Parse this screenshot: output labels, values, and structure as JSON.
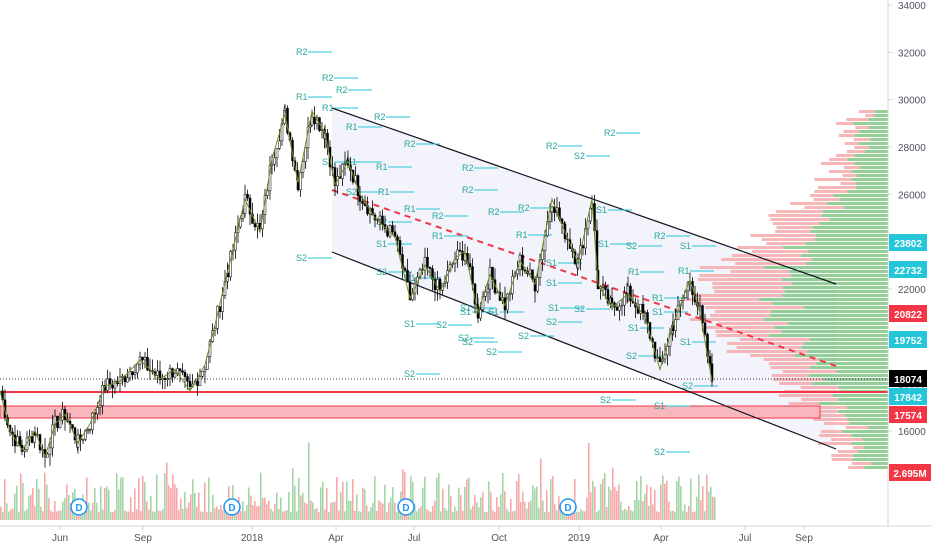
{
  "chart_data": {
    "type": "candlestick",
    "y_axis": {
      "ticks": [
        34000,
        32000,
        30000,
        28000,
        26000,
        24000,
        22000,
        20000,
        18000,
        16000
      ],
      "ylim": [
        13400,
        34300
      ]
    },
    "x_axis": {
      "labels": [
        "Jun",
        "Sep",
        "2018",
        "Apr",
        "Jul",
        "Oct",
        "2019",
        "Apr",
        "Jul",
        "Sep"
      ]
    },
    "price_badges": [
      {
        "value": "23802",
        "color": "#26c6da"
      },
      {
        "value": "22732",
        "color": "#26c6da"
      },
      {
        "value": "20822",
        "color": "#f23645"
      },
      {
        "value": "19752",
        "color": "#26c6da"
      },
      {
        "value": "18074",
        "color": "#000000"
      },
      {
        "value": "17842",
        "color": "#26c6da"
      },
      {
        "value": "17574",
        "color": "#f23645"
      }
    ],
    "volume_badge": {
      "value": "2.695M",
      "color": "#f23645"
    },
    "dividend_markers": [
      "D",
      "D",
      "D",
      "D"
    ],
    "pivot_labels": [
      "R2",
      "R2",
      "R2",
      "R1",
      "R1",
      "R2",
      "R1",
      "R2",
      "S1",
      "S1",
      "R1",
      "S2",
      "R1",
      "R2",
      "S1",
      "R1",
      "S2",
      "R2",
      "S2",
      "R1",
      "S1",
      "S1",
      "S2",
      "S1",
      "S2",
      "S1",
      "S1",
      "R1",
      "S2",
      "S2",
      "R2",
      "S1",
      "S2",
      "S1",
      "S2",
      "R2",
      "S1",
      "R1",
      "S2",
      "S1",
      "S1",
      "S2",
      "R1",
      "R2",
      "R2",
      "S1",
      "S2",
      "R2",
      "R1",
      "S2",
      "S1",
      "S2",
      "S2",
      "R2",
      "R1",
      "S1",
      "S2",
      "S1",
      "S2",
      "S2"
    ],
    "horizontal_levels": [
      18074,
      17842,
      17574
    ],
    "channel": {
      "upper": [
        29600,
        21700
      ],
      "lower": [
        24000,
        15300
      ],
      "midline": [
        26000,
        18600
      ]
    },
    "grid": false,
    "price_series_summary": {
      "start": 17700,
      "peak": 29500,
      "end": 18074
    }
  }
}
